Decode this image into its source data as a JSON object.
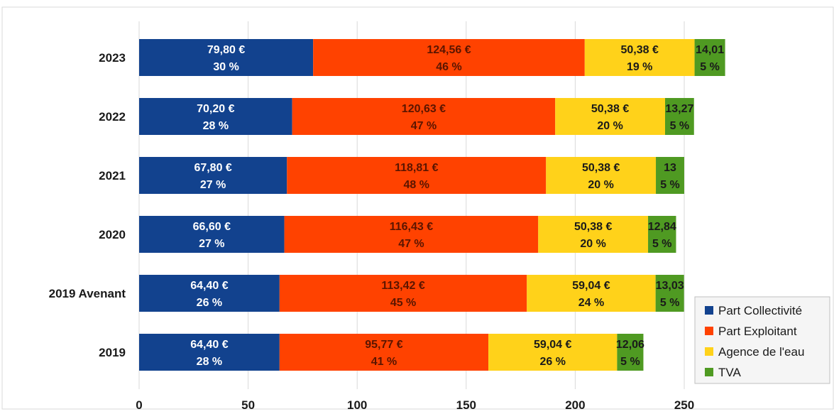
{
  "chart_data": {
    "type": "bar",
    "orientation": "horizontal",
    "stacked": true,
    "categories": [
      "2023",
      "2022",
      "2021",
      "2020",
      "2019 Avenant",
      "2019"
    ],
    "series": [
      {
        "name": "Part Collectivité",
        "color": "#12428e",
        "label_color": "#ffffff",
        "values": [
          79.8,
          70.2,
          67.8,
          66.6,
          64.4,
          64.4
        ],
        "value_labels": [
          "79,80 €",
          "70,20 €",
          "67,80 €",
          "66,60 €",
          "64,40 €",
          "64,40 €"
        ],
        "percent_labels": [
          "30 %",
          "28 %",
          "27 %",
          "27 %",
          "26 %",
          "28 %"
        ]
      },
      {
        "name": "Part Exploitant",
        "color": "#ff4200",
        "label_color": "#5a1500",
        "values": [
          124.56,
          120.63,
          118.81,
          116.43,
          113.42,
          95.77
        ],
        "value_labels": [
          "124,56 €",
          "120,63 €",
          "118,81 €",
          "116,43 €",
          "113,42 €",
          "95,77 €"
        ],
        "percent_labels": [
          "46 %",
          "47 %",
          "48 %",
          "47 %",
          "45 %",
          "41 %"
        ]
      },
      {
        "name": "Agence de l'eau",
        "color": "#ffd21a",
        "label_color": "#1a1a1a",
        "values": [
          50.38,
          50.38,
          50.38,
          50.38,
          59.04,
          59.04
        ],
        "value_labels": [
          "50,38 €",
          "50,38 €",
          "50,38 €",
          "50,38 €",
          "59,04 €",
          "59,04 €"
        ],
        "percent_labels": [
          "19 %",
          "20 %",
          "20 %",
          "20 %",
          "24 %",
          "26 %"
        ]
      },
      {
        "name": "TVA",
        "color": "#4f9a22",
        "label_color": "#1a1a1a",
        "values": [
          14.01,
          13.27,
          13,
          12.84,
          13.03,
          12.06
        ],
        "value_labels": [
          "14,01",
          "13,27",
          "13",
          "12,84",
          "13,03",
          "12,06"
        ],
        "percent_labels": [
          "5 %",
          "5 %",
          "5 %",
          "5 %",
          "5 %",
          "5 %"
        ]
      }
    ],
    "xlim": [
      0,
      250
    ],
    "xticks": [
      0,
      50,
      100,
      150,
      200,
      250
    ],
    "xtick_labels": [
      "0",
      "50",
      "100",
      "150",
      "200",
      "250"
    ],
    "grid": "vertical",
    "legend_position": "bottom-right"
  }
}
